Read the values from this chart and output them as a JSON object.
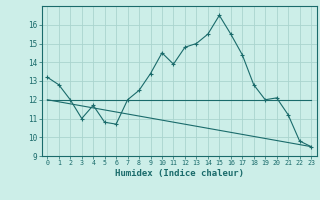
{
  "title": "",
  "xlabel": "Humidex (Indice chaleur)",
  "bg_color": "#cceee8",
  "grid_color": "#aad4ce",
  "line_color": "#1a6b6b",
  "xlim": [
    -0.5,
    23.5
  ],
  "ylim": [
    9,
    17
  ],
  "xticks": [
    0,
    1,
    2,
    3,
    4,
    5,
    6,
    7,
    8,
    9,
    10,
    11,
    12,
    13,
    14,
    15,
    16,
    17,
    18,
    19,
    20,
    21,
    22,
    23
  ],
  "yticks": [
    9,
    10,
    11,
    12,
    13,
    14,
    15,
    16
  ],
  "line1_x": [
    0,
    1,
    2,
    3,
    4,
    5,
    6,
    7,
    8,
    9,
    10,
    11,
    12,
    13,
    14,
    15,
    16,
    17,
    18,
    19,
    20,
    21,
    22,
    23
  ],
  "line1_y": [
    13.2,
    12.8,
    12.0,
    11.0,
    11.7,
    10.8,
    10.7,
    12.0,
    12.5,
    13.4,
    14.5,
    13.9,
    14.8,
    15.0,
    15.5,
    16.5,
    15.5,
    14.4,
    12.8,
    12.0,
    12.1,
    11.2,
    9.8,
    9.5
  ],
  "line2_x": [
    0,
    23
  ],
  "line2_y": [
    12.0,
    12.0
  ],
  "line3_x": [
    0,
    23
  ],
  "line3_y": [
    12.0,
    9.5
  ]
}
